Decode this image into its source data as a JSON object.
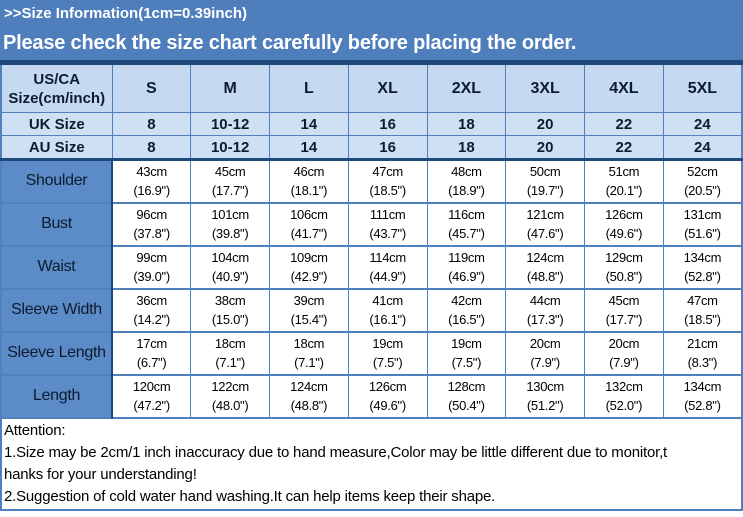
{
  "banner": {
    "line1": ">>Size Information(1cm=0.39inch)",
    "line2": "Please check the size chart carefully before placing the order."
  },
  "colors": {
    "banner_bg": "#4e7fbc",
    "header_cell_bg": "#c5d9f1",
    "uk_au_row_bg": "#cfe0f4",
    "row_label_bg": "#5b8cc8",
    "grid_border": "#4f81bd",
    "thick_border": "#1f497d",
    "banner_text": "#ffffff",
    "cell_text": "#000000"
  },
  "table": {
    "corner": {
      "line1": "US/CA",
      "line2": "Size(cm/inch)"
    },
    "size_columns": [
      "S",
      "M",
      "L",
      "XL",
      "2XL",
      "3XL",
      "4XL",
      "5XL"
    ],
    "uk_row": {
      "label": "UK Size",
      "values": [
        "8",
        "10-12",
        "14",
        "16",
        "18",
        "20",
        "22",
        "24"
      ]
    },
    "au_row": {
      "label": "AU Size",
      "values": [
        "8",
        "10-12",
        "14",
        "16",
        "18",
        "20",
        "22",
        "24"
      ]
    },
    "measurement_rows": [
      {
        "label": "Shoulder",
        "cells": [
          {
            "cm": "43cm",
            "inch": "(16.9\")"
          },
          {
            "cm": "45cm",
            "inch": "(17.7\")"
          },
          {
            "cm": "46cm",
            "inch": "(18.1\")"
          },
          {
            "cm": "47cm",
            "inch": "(18.5\")"
          },
          {
            "cm": "48cm",
            "inch": "(18.9\")"
          },
          {
            "cm": "50cm",
            "inch": "(19.7\")"
          },
          {
            "cm": "51cm",
            "inch": "(20.1\")"
          },
          {
            "cm": "52cm",
            "inch": "(20.5\")"
          }
        ]
      },
      {
        "label": "Bust",
        "cells": [
          {
            "cm": "96cm",
            "inch": "(37.8\")"
          },
          {
            "cm": "101cm",
            "inch": "(39.8\")"
          },
          {
            "cm": "106cm",
            "inch": "(41.7\")"
          },
          {
            "cm": "111cm",
            "inch": "(43.7\")"
          },
          {
            "cm": "116cm",
            "inch": "(45.7\")"
          },
          {
            "cm": "121cm",
            "inch": "(47.6\")"
          },
          {
            "cm": "126cm",
            "inch": "(49.6\")"
          },
          {
            "cm": "131cm",
            "inch": "(51.6\")"
          }
        ]
      },
      {
        "label": "Waist",
        "cells": [
          {
            "cm": "99cm",
            "inch": "(39.0\")"
          },
          {
            "cm": "104cm",
            "inch": "(40.9\")"
          },
          {
            "cm": "109cm",
            "inch": "(42.9\")"
          },
          {
            "cm": "114cm",
            "inch": "(44.9\")"
          },
          {
            "cm": "119cm",
            "inch": "(46.9\")"
          },
          {
            "cm": "124cm",
            "inch": "(48.8\")"
          },
          {
            "cm": "129cm",
            "inch": "(50.8\")"
          },
          {
            "cm": "134cm",
            "inch": "(52.8\")"
          }
        ]
      },
      {
        "label": "Sleeve Width",
        "cells": [
          {
            "cm": "36cm",
            "inch": "(14.2\")"
          },
          {
            "cm": "38cm",
            "inch": "(15.0\")"
          },
          {
            "cm": "39cm",
            "inch": "(15.4\")"
          },
          {
            "cm": "41cm",
            "inch": "(16.1\")"
          },
          {
            "cm": "42cm",
            "inch": "(16.5\")"
          },
          {
            "cm": "44cm",
            "inch": "(17.3\")"
          },
          {
            "cm": "45cm",
            "inch": "(17.7\")"
          },
          {
            "cm": "47cm",
            "inch": "(18.5\")"
          }
        ]
      },
      {
        "label": "Sleeve Length",
        "cells": [
          {
            "cm": "17cm",
            "inch": "(6.7\")"
          },
          {
            "cm": "18cm",
            "inch": "(7.1\")"
          },
          {
            "cm": "18cm",
            "inch": "(7.1\")"
          },
          {
            "cm": "19cm",
            "inch": "(7.5\")"
          },
          {
            "cm": "19cm",
            "inch": "(7.5\")"
          },
          {
            "cm": "20cm",
            "inch": "(7.9\")"
          },
          {
            "cm": "20cm",
            "inch": "(7.9\")"
          },
          {
            "cm": "21cm",
            "inch": "(8.3\")"
          }
        ]
      },
      {
        "label": "Length",
        "cells": [
          {
            "cm": "120cm",
            "inch": "(47.2\")"
          },
          {
            "cm": "122cm",
            "inch": "(48.0\")"
          },
          {
            "cm": "124cm",
            "inch": "(48.8\")"
          },
          {
            "cm": "126cm",
            "inch": "(49.6\")"
          },
          {
            "cm": "128cm",
            "inch": "(50.4\")"
          },
          {
            "cm": "130cm",
            "inch": "(51.2\")"
          },
          {
            "cm": "132cm",
            "inch": "(52.0\")"
          },
          {
            "cm": "134cm",
            "inch": "(52.8\")"
          }
        ]
      }
    ]
  },
  "attention": {
    "title": "Attention:",
    "line1": "1.Size may be 2cm/1 inch inaccuracy due to hand measure,Color may be little different due to monitor,t",
    "line2": "hanks for your understanding!",
    "line3": "2.Suggestion of cold water hand washing.It can help items keep their shape."
  }
}
